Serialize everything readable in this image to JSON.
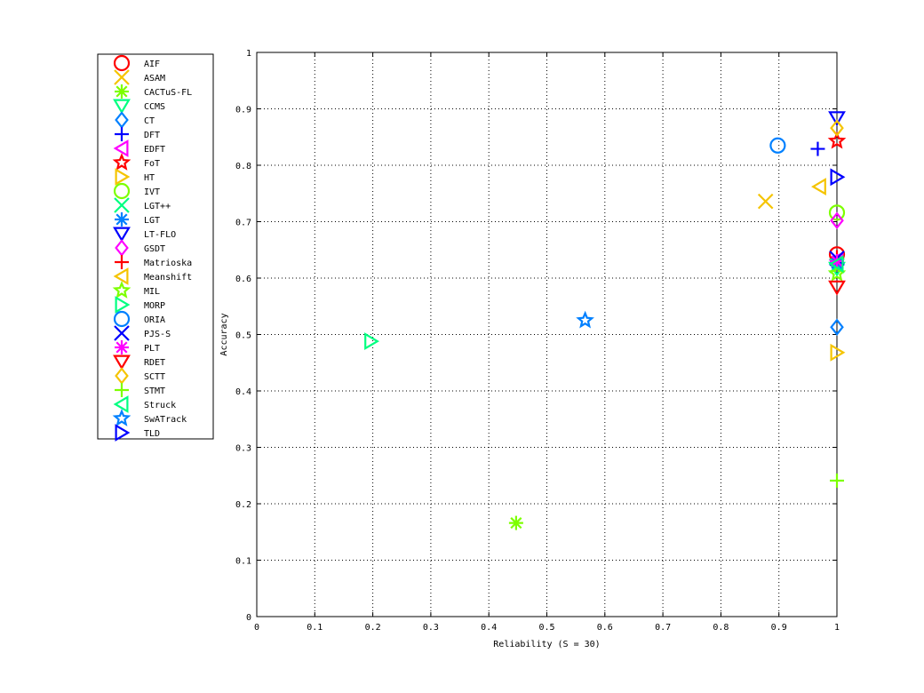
{
  "chart_data": {
    "type": "scatter",
    "title": "",
    "xlabel": "Reliability (S = 30)",
    "ylabel": "Accuracy",
    "xlim": [
      0,
      1
    ],
    "ylim": [
      0,
      1
    ],
    "xticks": [
      "0",
      "0.1",
      "0.2",
      "0.3",
      "0.4",
      "0.5",
      "0.6",
      "0.7",
      "0.8",
      "0.9",
      "1"
    ],
    "yticks": [
      "0",
      "0.1",
      "0.2",
      "0.3",
      "0.4",
      "0.5",
      "0.6",
      "0.7",
      "0.8",
      "0.9",
      "1"
    ],
    "grid": true,
    "legend_position": "outside-left",
    "series": [
      {
        "name": "AIF",
        "marker": "circle",
        "color": "#ff0000",
        "x": 1.0,
        "y": 0.642
      },
      {
        "name": "ASAM",
        "marker": "x",
        "color": "#f5c400",
        "x": 0.877,
        "y": 0.736
      },
      {
        "name": "CACTuS-FL",
        "marker": "asterisk",
        "color": "#7dff00",
        "x": 0.447,
        "y": 0.166
      },
      {
        "name": "CCMS",
        "marker": "triangle-down",
        "color": "#00ff80",
        "x": 1.0,
        "y": 0.617
      },
      {
        "name": "CT",
        "marker": "diamond",
        "color": "#0080ff",
        "x": 1.0,
        "y": 0.513
      },
      {
        "name": "DFT",
        "marker": "plus",
        "color": "#0000ff",
        "x": 0.967,
        "y": 0.829
      },
      {
        "name": "EDFT",
        "marker": "triangle-left",
        "color": "#ff00ff",
        "x": 1.0,
        "y": 0.632
      },
      {
        "name": "FoT",
        "marker": "star",
        "color": "#ff0000",
        "x": 1.0,
        "y": 0.843
      },
      {
        "name": "HT",
        "marker": "triangle-right",
        "color": "#f5c400",
        "x": 1.0,
        "y": 0.468
      },
      {
        "name": "IVT",
        "marker": "circle",
        "color": "#7dff00",
        "x": 1.0,
        "y": 0.716
      },
      {
        "name": "LGT++",
        "marker": "x",
        "color": "#00ff80",
        "x": 1.0,
        "y": 0.622
      },
      {
        "name": "LGT",
        "marker": "asterisk",
        "color": "#0080ff",
        "x": 1.0,
        "y": 0.626
      },
      {
        "name": "LT-FLO",
        "marker": "triangle-down",
        "color": "#0000ff",
        "x": 1.0,
        "y": 0.884
      },
      {
        "name": "GSDT",
        "marker": "diamond",
        "color": "#ff00ff",
        "x": 1.0,
        "y": 0.702
      },
      {
        "name": "Matrioska",
        "marker": "plus",
        "color": "#ff0000",
        "x": 1.0,
        "y": 0.637
      },
      {
        "name": "Meanshift",
        "marker": "triangle-left",
        "color": "#f5c400",
        "x": 0.97,
        "y": 0.762
      },
      {
        "name": "MIL",
        "marker": "star",
        "color": "#7dff00",
        "x": 1.0,
        "y": 0.608
      },
      {
        "name": "MORP",
        "marker": "triangle-right",
        "color": "#00ff80",
        "x": 0.197,
        "y": 0.488
      },
      {
        "name": "ORIA",
        "marker": "circle",
        "color": "#0080ff",
        "x": 0.898,
        "y": 0.835
      },
      {
        "name": "PJS-S",
        "marker": "x",
        "color": "#0000ff",
        "x": 1.0,
        "y": 0.635
      },
      {
        "name": "PLT",
        "marker": "asterisk",
        "color": "#ff00ff",
        "x": 1.0,
        "y": 0.63
      },
      {
        "name": "RDET",
        "marker": "triangle-down",
        "color": "#ff0000",
        "x": 1.0,
        "y": 0.584
      },
      {
        "name": "SCTT",
        "marker": "diamond",
        "color": "#f5c400",
        "x": 1.0,
        "y": 0.866
      },
      {
        "name": "STMT",
        "marker": "plus",
        "color": "#7dff00",
        "x": 1.0,
        "y": 0.241
      },
      {
        "name": "Struck",
        "marker": "triangle-left",
        "color": "#00ff80",
        "x": 1.0,
        "y": 0.625
      },
      {
        "name": "SwATrack",
        "marker": "star",
        "color": "#0080ff",
        "x": 0.566,
        "y": 0.525
      },
      {
        "name": "TLD",
        "marker": "triangle-right",
        "color": "#0000ff",
        "x": 1.0,
        "y": 0.779
      }
    ]
  }
}
